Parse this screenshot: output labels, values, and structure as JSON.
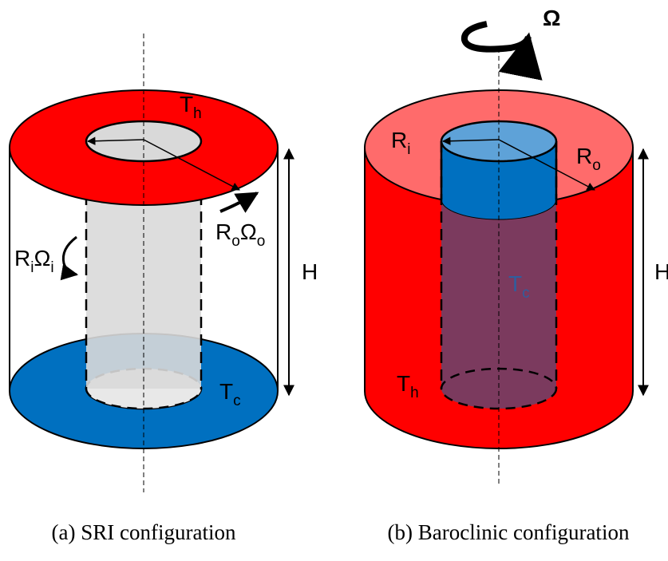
{
  "panels": [
    {
      "caption": "(a) SRI configuration",
      "labels": [
        {
          "parts": [
            {
              "base": "T",
              "sub": "h"
            }
          ]
        },
        {
          "parts": [
            {
              "base": "R",
              "sub": "i"
            },
            {
              "base": "Ω",
              "sub": "i"
            }
          ]
        },
        {
          "parts": [
            {
              "base": "R",
              "sub": "o"
            },
            {
              "base": "Ω",
              "sub": "o"
            }
          ]
        },
        {
          "parts": [
            {
              "base": "H"
            }
          ]
        },
        {
          "parts": [
            {
              "base": "T",
              "sub": "c"
            }
          ]
        }
      ]
    },
    {
      "caption": "(b) Baroclinic configuration",
      "labels": [
        {
          "parts": [
            {
              "base": "Ω"
            }
          ]
        },
        {
          "parts": [
            {
              "base": "R",
              "sub": "i"
            }
          ]
        },
        {
          "parts": [
            {
              "base": "R",
              "sub": "o"
            }
          ]
        },
        {
          "parts": [
            {
              "base": "H"
            }
          ]
        },
        {
          "parts": [
            {
              "base": "T",
              "sub": "c"
            }
          ]
        },
        {
          "parts": [
            {
              "base": "T",
              "sub": "h"
            }
          ]
        }
      ]
    }
  ]
}
